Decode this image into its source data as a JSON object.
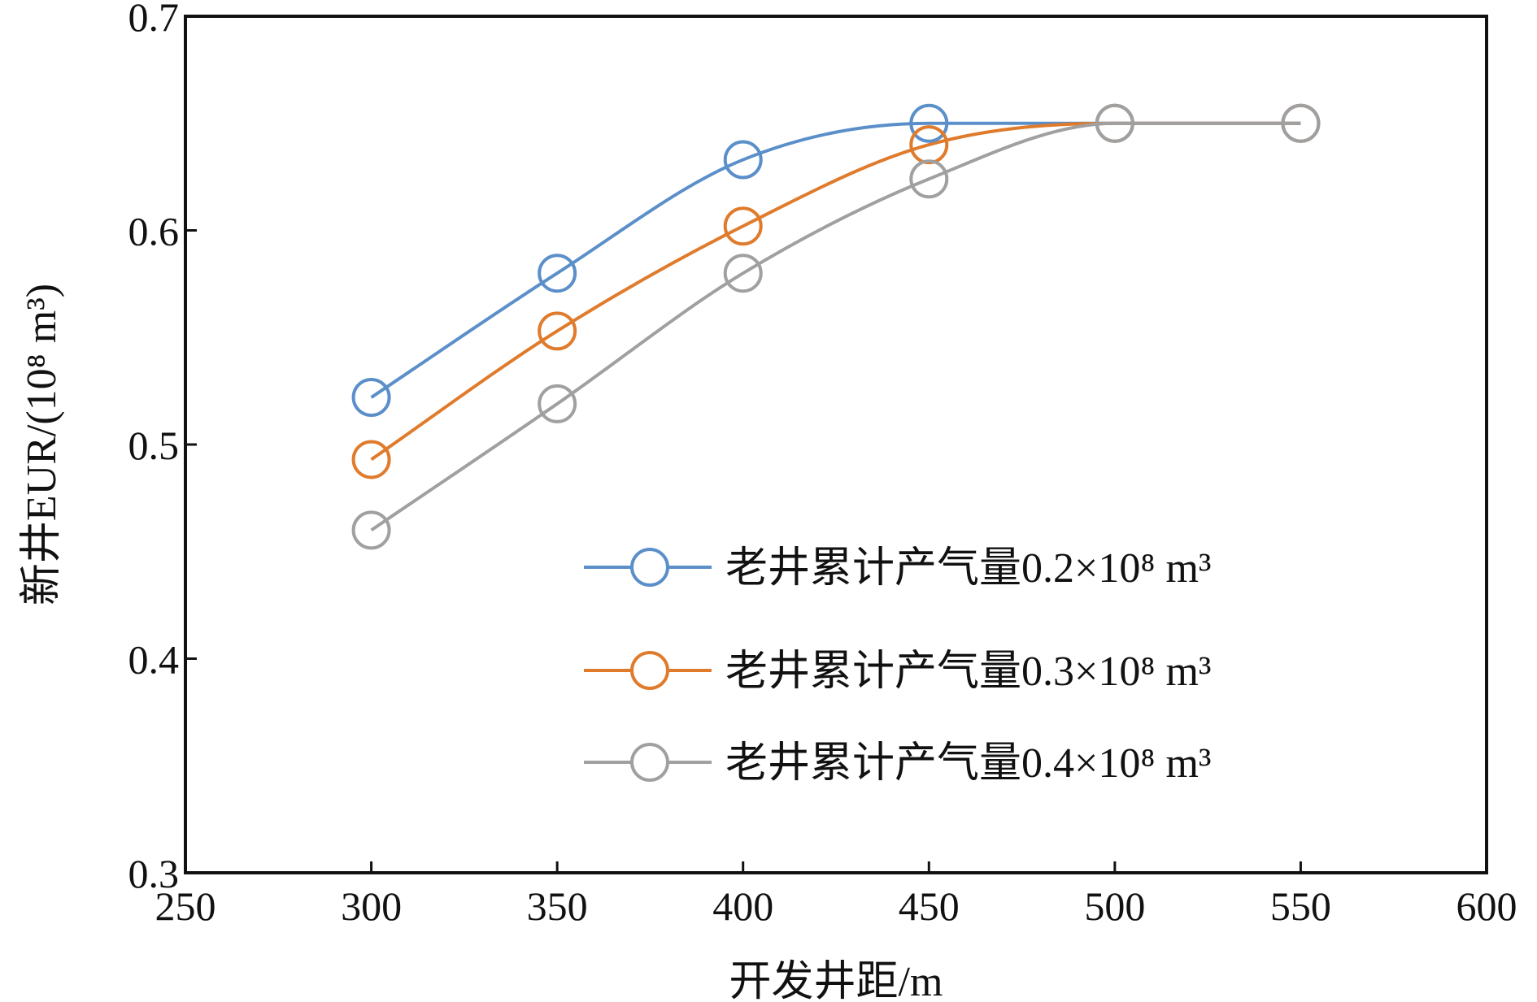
{
  "chart_data": {
    "type": "line",
    "xlabel": "开发井距/m",
    "ylabel": "新井EUR/(10⁸ m³)",
    "xlim": [
      250,
      600
    ],
    "ylim": [
      0.3,
      0.7
    ],
    "xticks": [
      250,
      300,
      350,
      400,
      450,
      500,
      550,
      600
    ],
    "yticks": [
      0.3,
      0.4,
      0.5,
      0.6,
      0.7
    ],
    "x": [
      300,
      350,
      400,
      450,
      500,
      550
    ],
    "grid": false,
    "legend_position": "bottom-right",
    "series": [
      {
        "name": "老井累计产气量0.2×10⁸ m³",
        "color": "#5b8fc9",
        "values": [
          0.522,
          0.58,
          0.633,
          0.65,
          0.65,
          0.65
        ]
      },
      {
        "name": "老井累计产气量0.3×10⁸ m³",
        "color": "#e07b2c",
        "values": [
          0.493,
          0.553,
          0.602,
          0.64,
          0.65,
          0.65
        ]
      },
      {
        "name": "老井累计产气量0.4×10⁸ m³",
        "color": "#a0a0a0",
        "values": [
          0.46,
          0.519,
          0.58,
          0.624,
          0.65,
          0.65
        ]
      }
    ]
  }
}
